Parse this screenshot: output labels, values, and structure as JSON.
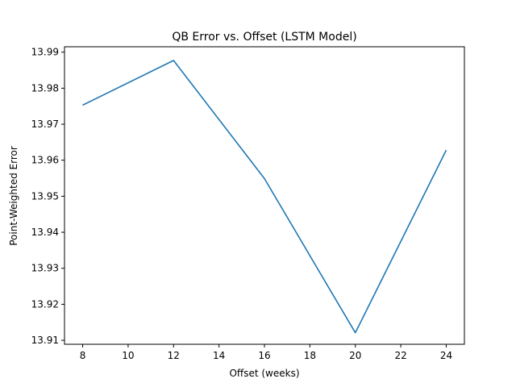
{
  "chart_data": {
    "type": "line",
    "title": "QB Error vs. Offset (LSTM Model)",
    "xlabel": "Offset (weeks)",
    "ylabel": "Point-Weighted Error",
    "xlim": [
      7.2,
      24.8
    ],
    "ylim": [
      13.9089,
      13.9915
    ],
    "x_ticks": [
      8,
      10,
      12,
      14,
      16,
      18,
      20,
      22,
      24
    ],
    "y_ticks": [
      13.91,
      13.92,
      13.93,
      13.94,
      13.95,
      13.96,
      13.97,
      13.98,
      13.99
    ],
    "y_tick_labels": [
      "13.91",
      "13.92",
      "13.93",
      "13.94",
      "13.95",
      "13.96",
      "13.97",
      "13.98",
      "13.99"
    ],
    "grid": false,
    "series": [
      {
        "x": [
          8,
          12,
          16,
          20,
          24
        ],
        "y": [
          13.9753,
          13.9877,
          13.9549,
          13.9121,
          13.9628
        ],
        "color": "#1f77b4"
      }
    ]
  }
}
